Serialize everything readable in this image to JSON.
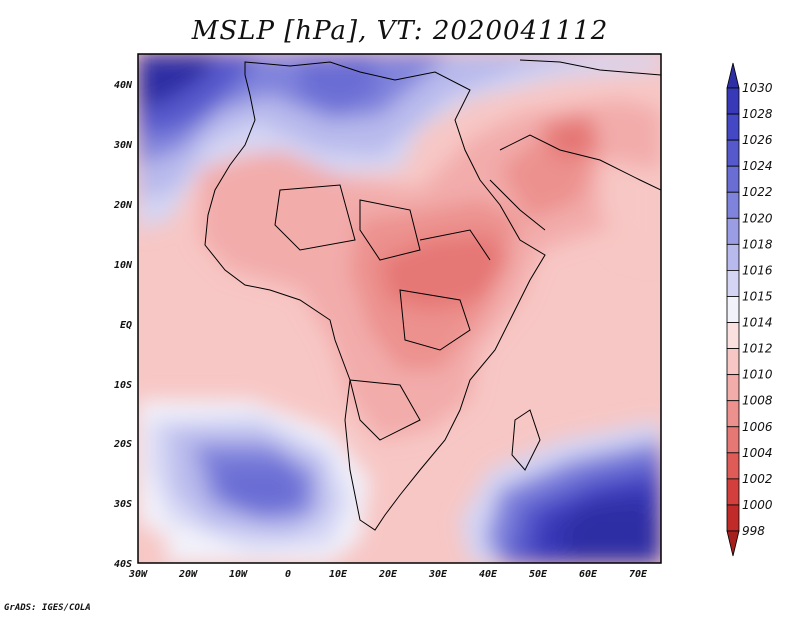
{
  "title": "MSLP [hPa], VT: 2020041112",
  "credit": "GrADS: IGES/COLA",
  "map": {
    "variable": "MSLP",
    "units": "hPa",
    "valid_time": "2020041112",
    "lon_range": [
      -30,
      75
    ],
    "lat_range": [
      -40,
      45
    ],
    "lat_ticks": [
      "40N",
      "30N",
      "20N",
      "10N",
      "EQ",
      "10S",
      "20S",
      "30S",
      "40S"
    ],
    "lon_ticks": [
      "30W",
      "20W",
      "10W",
      "0",
      "10E",
      "20E",
      "30E",
      "40E",
      "50E",
      "60E",
      "70E"
    ],
    "pressure_features": [
      {
        "type": "high",
        "near": "northwest Atlantic / Azores",
        "value_hPa": 1030
      },
      {
        "type": "high",
        "near": "South Atlantic",
        "value_hPa": 1024
      },
      {
        "type": "high",
        "near": "southern Indian Ocean",
        "value_hPa": 1030
      },
      {
        "type": "low",
        "near": "central Africa / South Sudan",
        "value_hPa": 1004
      },
      {
        "type": "low",
        "near": "Arabian Peninsula",
        "value_hPa": 1006
      }
    ]
  },
  "colorbar": {
    "levels": [
      "1030",
      "1028",
      "1026",
      "1024",
      "1022",
      "1020",
      "1018",
      "1016",
      "1015",
      "1014",
      "1012",
      "1010",
      "1008",
      "1006",
      "1004",
      "1002",
      "1000",
      "998"
    ],
    "colors": [
      "#2e2fa4",
      "#3839b8",
      "#4548c4",
      "#5659cc",
      "#6a6dd4",
      "#8083dc",
      "#9b9de4",
      "#b8b9ec",
      "#d4d5f4",
      "#f2f2fb",
      "#fbe0e0",
      "#f7c7c5",
      "#f2acaa",
      "#ec918e",
      "#e57774",
      "#de5b58",
      "#d33f3c",
      "#c02a29",
      "#a51f1f"
    ]
  }
}
